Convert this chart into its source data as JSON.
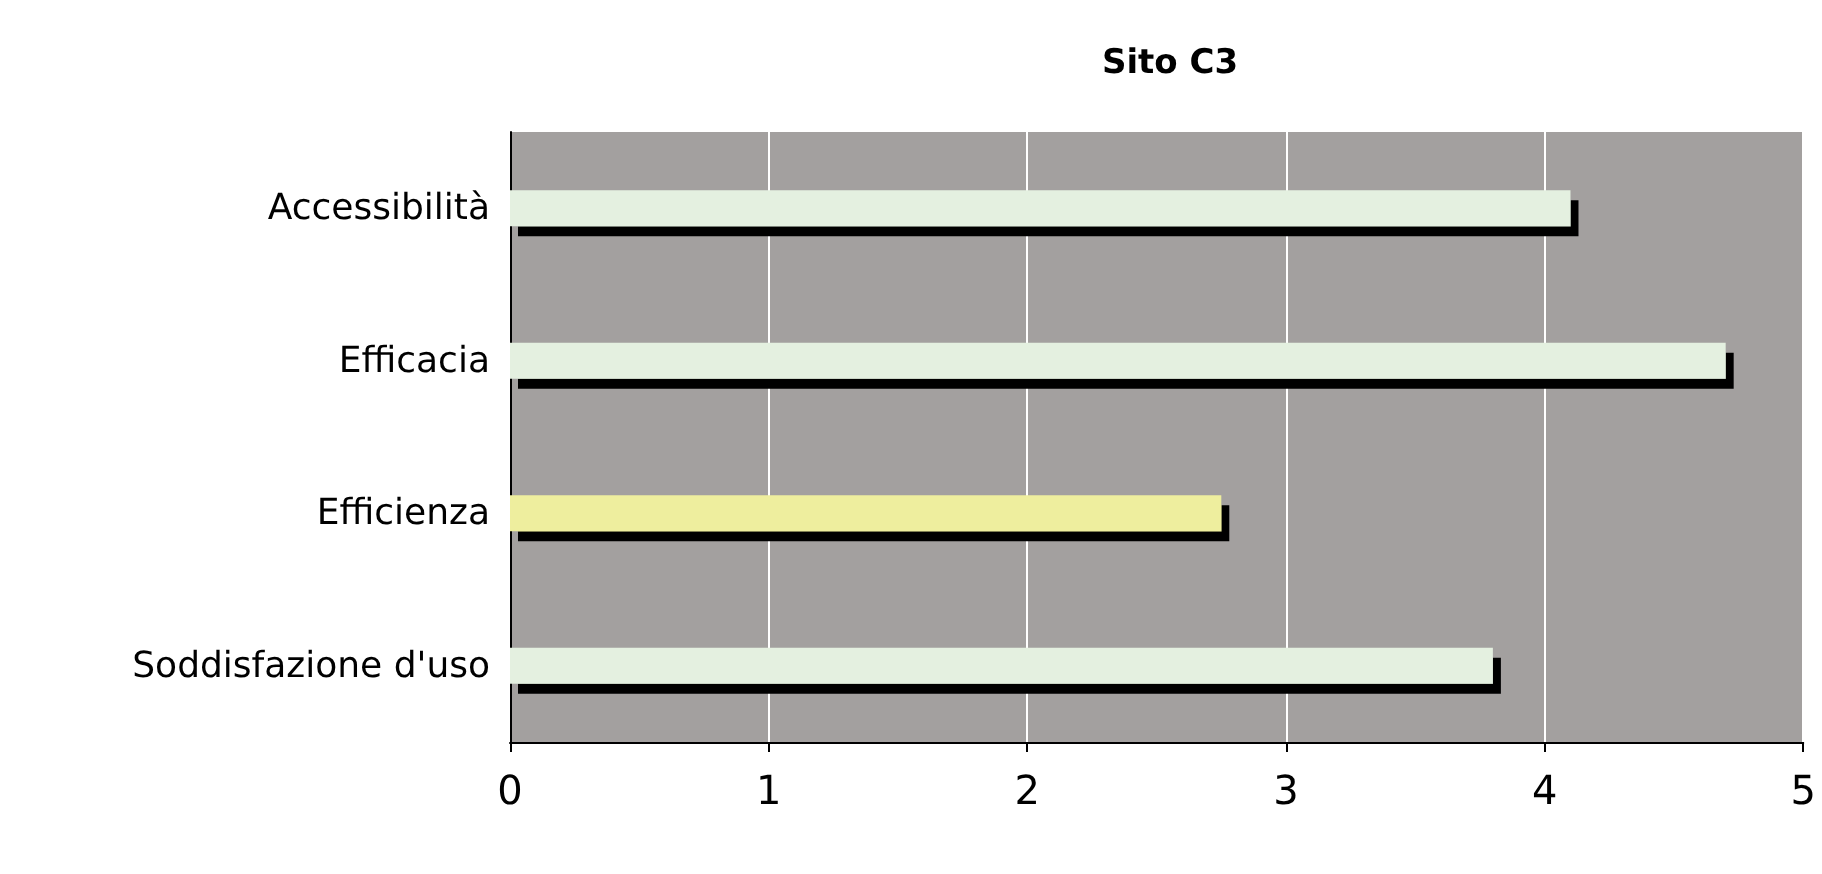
{
  "chart_data": {
    "type": "bar",
    "orientation": "horizontal",
    "title": "Sito C3",
    "categories": [
      "Accessibilità",
      "Efficacia",
      "Efficienza",
      "Soddisfazione d'uso"
    ],
    "values": [
      4.1,
      4.7,
      2.75,
      3.8
    ],
    "colors": [
      "#e4f0e0",
      "#e4f0e0",
      "#eeee9e",
      "#e4f0e0"
    ],
    "xlim": [
      0,
      5
    ],
    "xticks": [
      0,
      1,
      2,
      3,
      4,
      5
    ],
    "grid": "x"
  }
}
